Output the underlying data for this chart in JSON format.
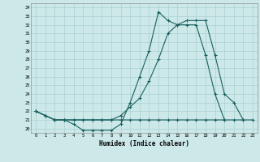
{
  "xlabel": "Humidex (Indice chaleur)",
  "bg_color": "#cce8e8",
  "grid_color": "#aad0d0",
  "line_color": "#1a6060",
  "xlim": [
    -0.5,
    23.5
  ],
  "ylim": [
    19.5,
    34.5
  ],
  "xticks": [
    0,
    1,
    2,
    3,
    4,
    5,
    6,
    7,
    8,
    9,
    10,
    11,
    12,
    13,
    14,
    15,
    16,
    17,
    18,
    19,
    20,
    21,
    22,
    23
  ],
  "yticks": [
    20,
    21,
    22,
    23,
    24,
    25,
    26,
    27,
    28,
    29,
    30,
    31,
    32,
    33,
    34
  ],
  "line1_x": [
    0,
    1,
    2,
    3,
    4,
    5,
    6,
    7,
    8,
    9,
    10,
    11,
    12,
    13,
    14,
    15,
    16,
    17,
    18,
    19,
    20
  ],
  "line1_y": [
    22.0,
    21.5,
    21.0,
    21.0,
    20.5,
    19.8,
    19.8,
    19.8,
    19.8,
    20.5,
    23.0,
    26.0,
    29.0,
    33.5,
    32.5,
    32.0,
    32.0,
    32.0,
    28.5,
    24.0,
    21.0
  ],
  "line2_x": [
    0,
    1,
    2,
    3,
    4,
    5,
    6,
    7,
    8,
    9,
    10,
    11,
    12,
    13,
    14,
    15,
    16,
    17,
    18,
    19,
    20,
    21,
    22
  ],
  "line2_y": [
    22.0,
    21.5,
    21.0,
    21.0,
    21.0,
    21.0,
    21.0,
    21.0,
    21.0,
    21.5,
    22.5,
    23.5,
    25.5,
    28.0,
    31.0,
    32.0,
    32.5,
    32.5,
    32.5,
    28.5,
    24.0,
    23.0,
    21.0
  ],
  "line3_x": [
    0,
    1,
    2,
    3,
    4,
    5,
    6,
    7,
    8,
    9,
    10,
    11,
    12,
    13,
    14,
    15,
    16,
    17,
    18,
    19,
    20,
    21,
    22,
    23
  ],
  "line3_y": [
    22.0,
    21.5,
    21.0,
    21.0,
    21.0,
    21.0,
    21.0,
    21.0,
    21.0,
    21.0,
    21.0,
    21.0,
    21.0,
    21.0,
    21.0,
    21.0,
    21.0,
    21.0,
    21.0,
    21.0,
    21.0,
    21.0,
    21.0,
    21.0
  ]
}
